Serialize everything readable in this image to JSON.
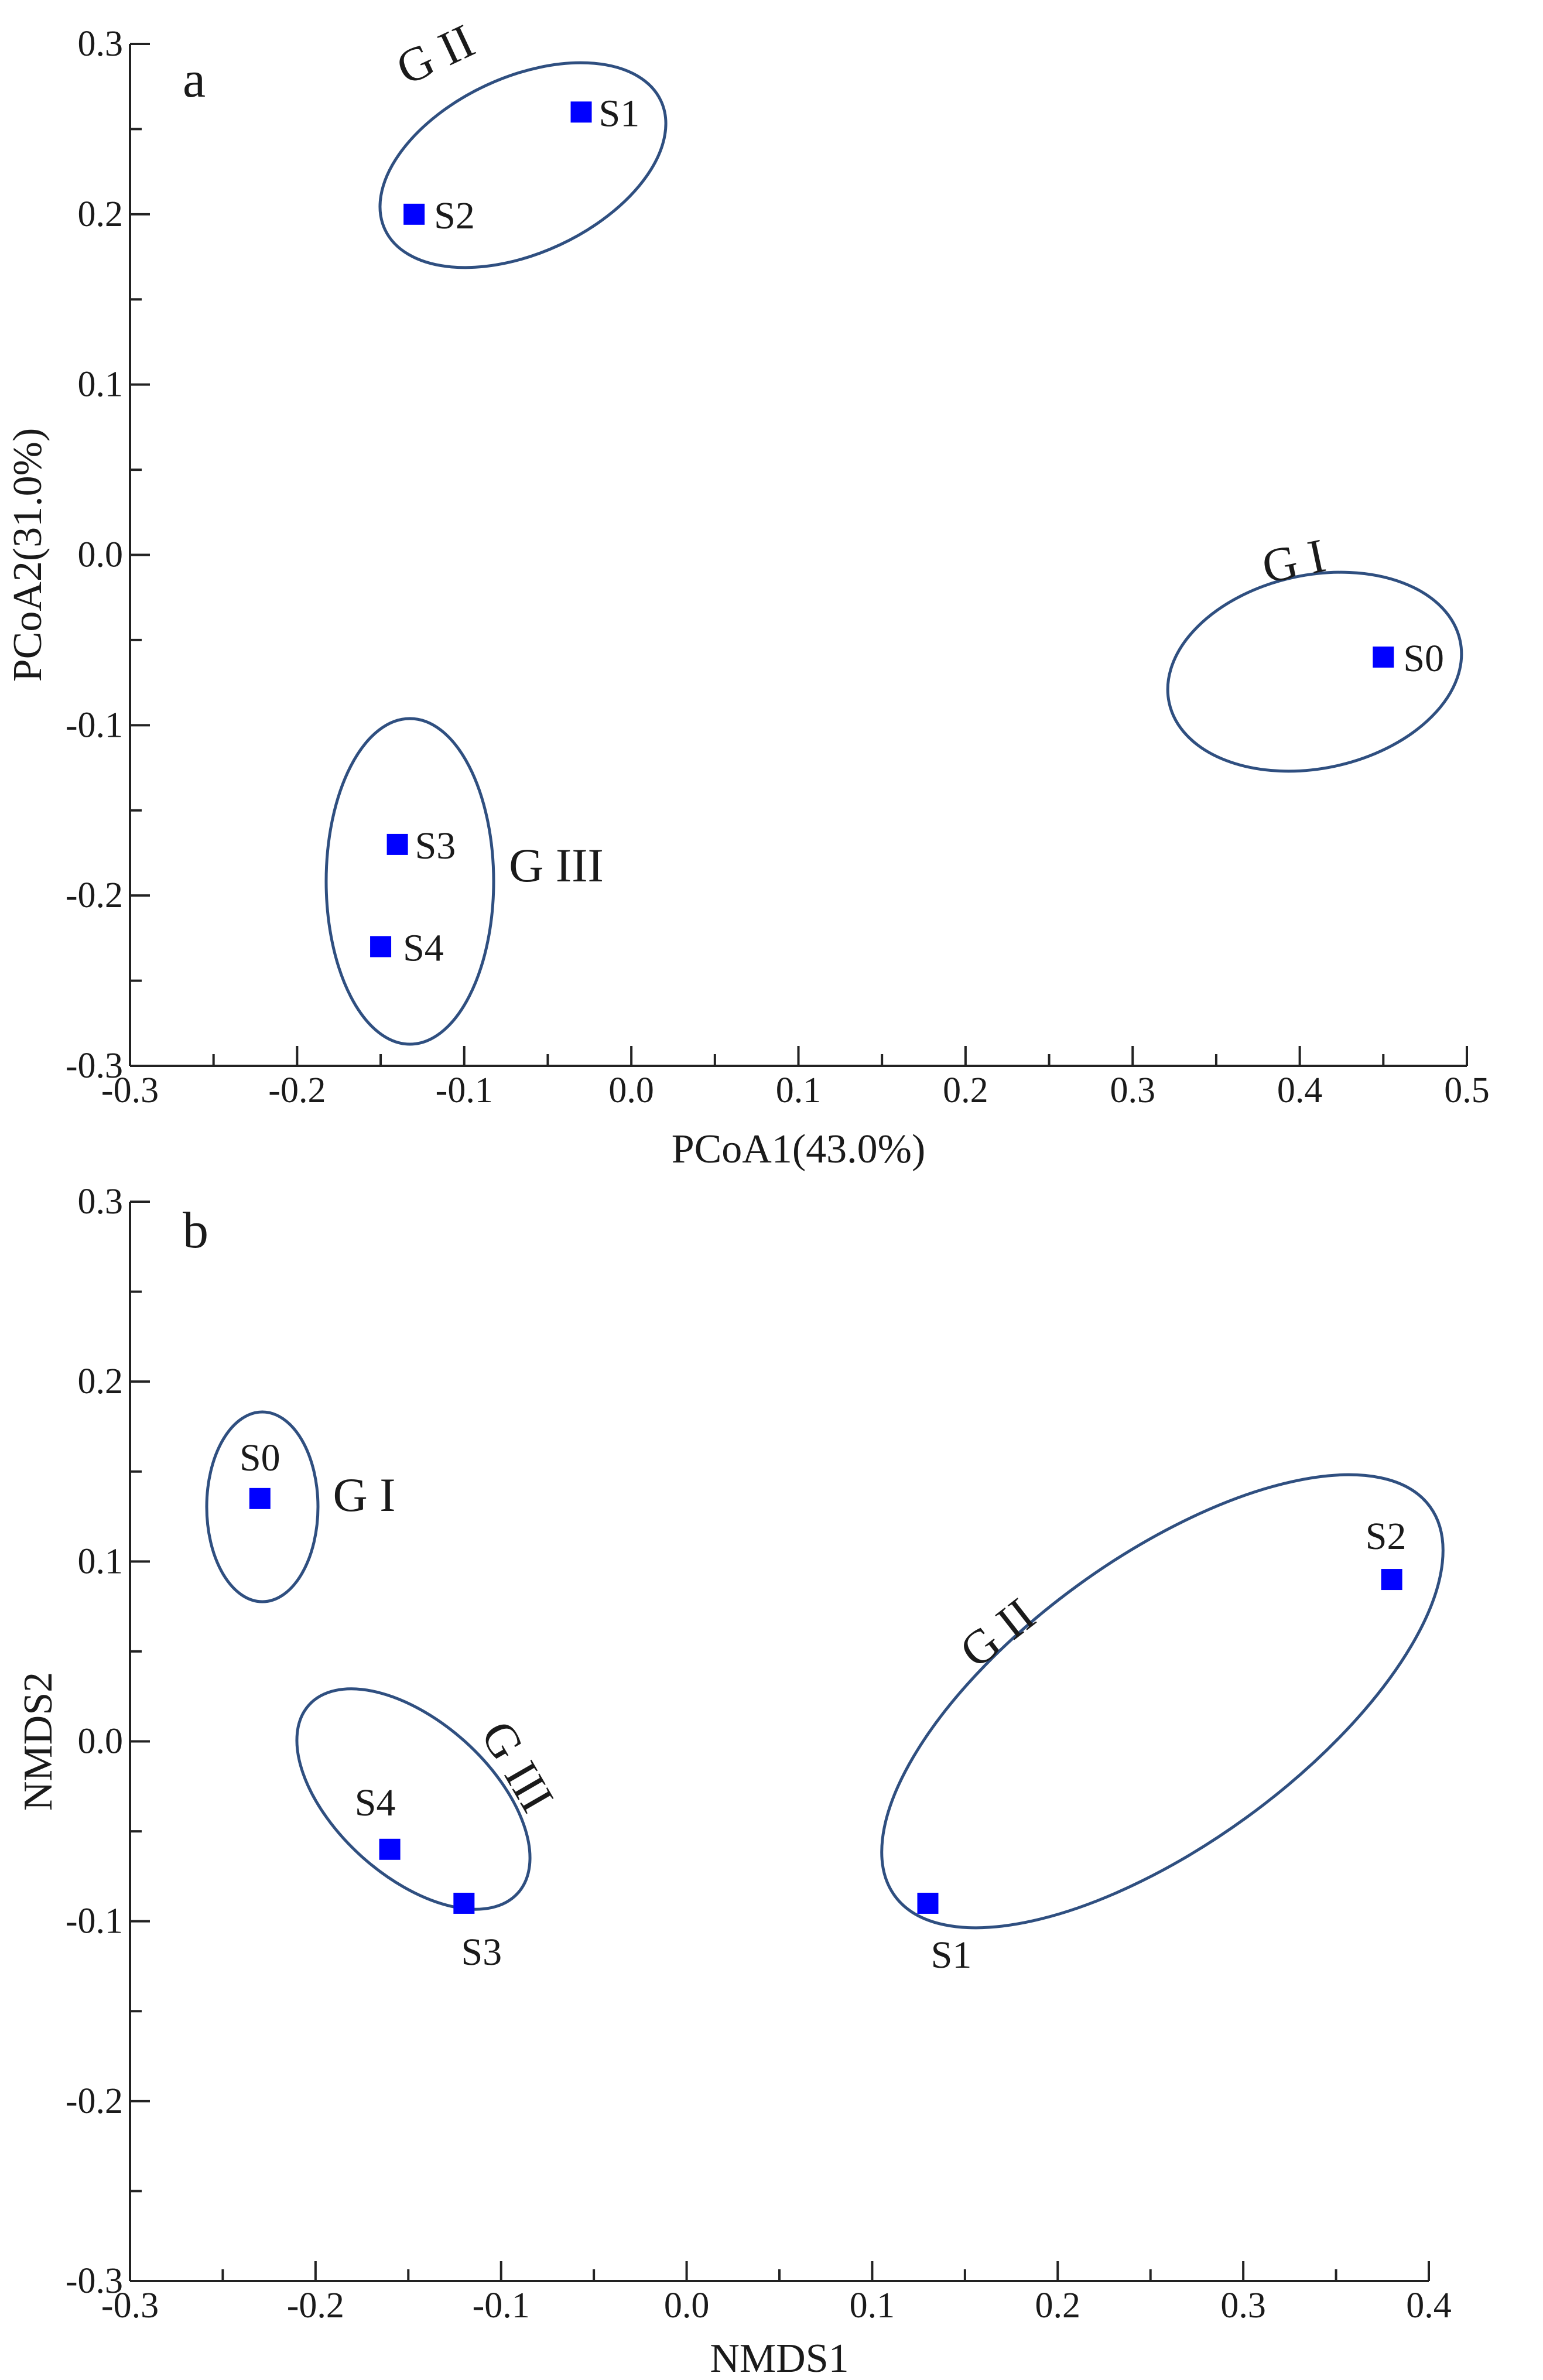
{
  "chart_data": [
    {
      "panel": "a",
      "type": "scatter",
      "xlabel": "PCoA1(43.0%)",
      "ylabel": "PCoA2(31.0%)",
      "xlim": [
        -0.3,
        0.5
      ],
      "ylim": [
        -0.3,
        0.3
      ],
      "xticks": [
        "-0.3",
        "-0.2",
        "-0.1",
        "0.0",
        "0.1",
        "0.2",
        "0.3",
        "0.4",
        "0.5"
      ],
      "yticks": [
        "0.3",
        "0.2",
        "0.1",
        "0.0",
        "-0.1",
        "-0.2",
        "-0.3"
      ],
      "marker_color": "#0000ff",
      "ellipse_color": "#2f4f80",
      "points": [
        {
          "label": "S0",
          "x": 0.45,
          "y": -0.06
        },
        {
          "label": "S1",
          "x": -0.03,
          "y": 0.26
        },
        {
          "label": "S2",
          "x": -0.13,
          "y": 0.2
        },
        {
          "label": "S3",
          "x": -0.14,
          "y": -0.17
        },
        {
          "label": "S4",
          "x": -0.15,
          "y": -0.23
        }
      ],
      "groups": [
        {
          "label": "G I",
          "members": [
            "S0"
          ]
        },
        {
          "label": "G II",
          "members": [
            "S1",
            "S2"
          ]
        },
        {
          "label": "G III",
          "members": [
            "S3",
            "S4"
          ]
        }
      ]
    },
    {
      "panel": "b",
      "type": "scatter",
      "xlabel": "NMDS1",
      "ylabel": "NMDS2",
      "xlim": [
        -0.3,
        0.4
      ],
      "ylim": [
        -0.3,
        0.3
      ],
      "xticks": [
        "-0.3",
        "-0.2",
        "-0.1",
        "0.0",
        "0.1",
        "0.2",
        "0.3",
        "0.4"
      ],
      "yticks": [
        "0.3",
        "0.2",
        "0.1",
        "0.0",
        "-0.1",
        "-0.2",
        "-0.3"
      ],
      "marker_color": "#0000ff",
      "ellipse_color": "#2f4f80",
      "points": [
        {
          "label": "S0",
          "x": -0.23,
          "y": 0.135
        },
        {
          "label": "S1",
          "x": 0.13,
          "y": -0.09
        },
        {
          "label": "S2",
          "x": 0.38,
          "y": 0.09
        },
        {
          "label": "S3",
          "x": -0.12,
          "y": -0.09
        },
        {
          "label": "S4",
          "x": -0.16,
          "y": -0.06
        }
      ],
      "groups": [
        {
          "label": "G I",
          "members": [
            "S0"
          ]
        },
        {
          "label": "G II",
          "members": [
            "S1",
            "S2"
          ]
        },
        {
          "label": "G III",
          "members": [
            "S3",
            "S4"
          ]
        }
      ]
    }
  ]
}
